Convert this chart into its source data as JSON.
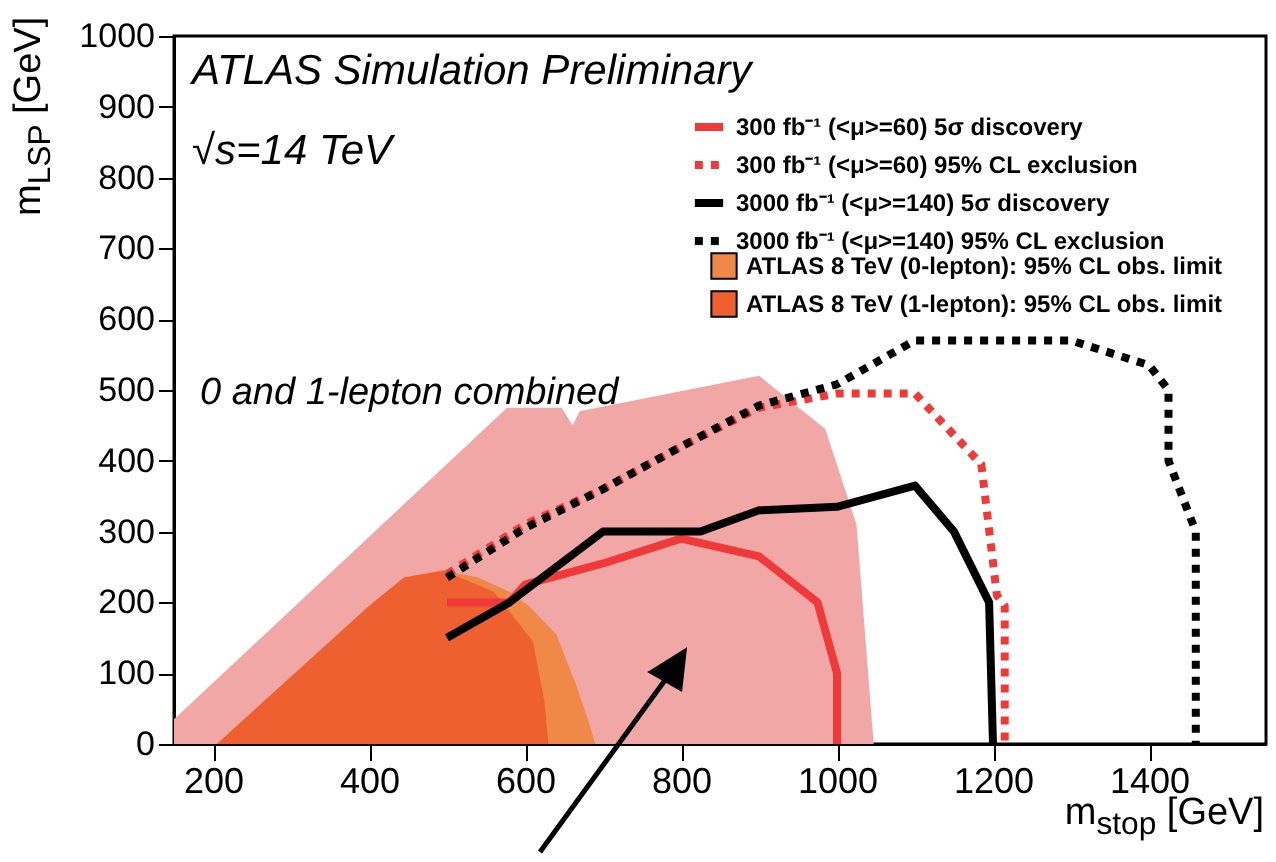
{
  "chart_data": {
    "type": "line",
    "title": "ATLAS Simulation Preliminary",
    "annotations": [
      "√s=14 TeV",
      "0 and 1-lepton combined"
    ],
    "xlabel": "m$_{stop}$ [GeV]",
    "ylabel": "m$_{LSP}$ [GeV]",
    "xlim": [
      150,
      1550
    ],
    "xticks": [
      200,
      400,
      600,
      800,
      1000,
      1200,
      1400
    ],
    "ylim": [
      0,
      1000
    ],
    "yticks": [
      0,
      100,
      200,
      300,
      400,
      500,
      600,
      700,
      800,
      900,
      1000
    ],
    "legend": "top right",
    "series": [
      {
        "type": "area",
        "color": "#f2a7a7",
        "x": [
          150,
          577,
          647,
          661,
          670,
          900,
          985,
          1025,
          1047
        ],
        "values": [
          35,
          475,
          475,
          450,
          470,
          520,
          445,
          310,
          0
        ]
      },
      {
        "type": "area",
        "name": "ATLAS 8 TeV (0-lepton): 95% CL obs. limit",
        "color": "#f08848",
        "x": [
          205,
          400,
          445,
          495,
          540,
          580,
          605,
          640,
          665,
          682,
          690
        ],
        "values": [
          0,
          195,
          235,
          245,
          235,
          215,
          195,
          155,
          85,
          30,
          0
        ]
      },
      {
        "type": "area",
        "name": "ATLAS 8 TeV (1-lepton): 95% CL obs. limit",
        "color": "#ee6030",
        "x": [
          205,
          400,
          445,
          495,
          560,
          610,
          625,
          630
        ],
        "values": [
          0,
          195,
          235,
          245,
          215,
          145,
          60,
          0
        ]
      },
      {
        "line_style": "solid",
        "name": "300 fb⁻¹ (<μ>=60) 5σ discovery",
        "color": "#f03a3a",
        "x": [
          500,
          580,
          600,
          700,
          800,
          900,
          975,
          1000,
          1000
        ],
        "values": [
          200,
          200,
          225,
          255,
          290,
          265,
          200,
          100,
          0
        ]
      },
      {
        "line_style": "dotted",
        "name": "300 fb⁻¹ (<μ>=60) 95% CL exclusion",
        "color": "#f03a3a",
        "x": [
          500,
          600,
          700,
          800,
          900,
          1000,
          1100,
          1185,
          1205,
          1215,
          1215
        ],
        "values": [
          240,
          310,
          360,
          420,
          475,
          495,
          495,
          395,
          210,
          195,
          0
        ]
      },
      {
        "line_style": "solid",
        "name": "3000 fb⁻¹ (<μ>=140) 5σ discovery",
        "color": "#000000",
        "x": [
          500,
          580,
          700,
          825,
          900,
          1000,
          1100,
          1150,
          1195,
          1200
        ],
        "values": [
          150,
          200,
          300,
          300,
          330,
          335,
          365,
          300,
          200,
          0
        ]
      },
      {
        "line_style": "dotted",
        "name": "3000 fb⁻¹ (<μ>=140) 95% CL exclusion",
        "color": "#000000",
        "x": [
          500,
          600,
          700,
          800,
          900,
          1000,
          1100,
          1300,
          1400,
          1425,
          1425,
          1460,
          1460
        ],
        "values": [
          235,
          305,
          360,
          420,
          478,
          508,
          570,
          570,
          535,
          500,
          400,
          300,
          0
        ]
      }
    ]
  }
}
